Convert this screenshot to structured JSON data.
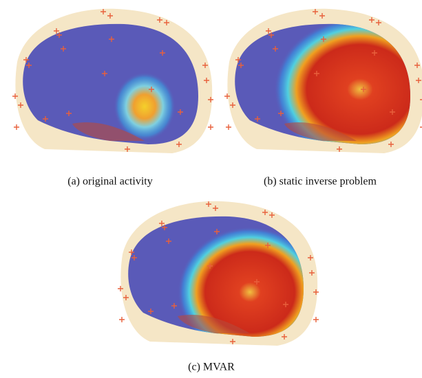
{
  "figure": {
    "panels": [
      {
        "caption": "(a) original activity"
      },
      {
        "caption": "(b) static inverse problem"
      },
      {
        "caption": "(c) MVAR"
      }
    ]
  }
}
